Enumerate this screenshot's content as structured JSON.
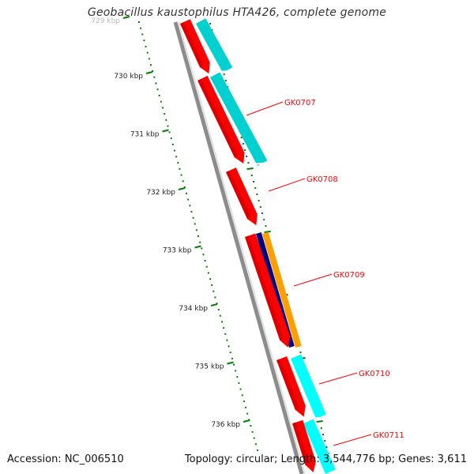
{
  "title": "Geobacillus kaustophilus HTA426, complete genome",
  "footer": {
    "accession": "Accession: NC_006510",
    "stats": "Topology: circular; Length: 3,544,776 bp; Genes: 3,611"
  },
  "ruler": {
    "ticks": [
      {
        "label": "729 kbp",
        "faded": true
      },
      {
        "label": "730 kbp"
      },
      {
        "label": "731 kbp"
      },
      {
        "label": "732 kbp"
      },
      {
        "label": "733 kbp"
      },
      {
        "label": "734 kbp"
      },
      {
        "label": "735 kbp"
      },
      {
        "label": "736 kbp"
      }
    ]
  },
  "genes": [
    {
      "label": "GK0707"
    },
    {
      "label": "GK0708"
    },
    {
      "label": "GK0709"
    },
    {
      "label": "GK0710"
    },
    {
      "label": "GK0711"
    }
  ],
  "colors": {
    "backbone": "#8c8c8c",
    "cds": "#ff0000",
    "cds_dark": "#b80000",
    "feature_cyan": "#00d0d0",
    "feature_cyan_bright": "#00ffff",
    "feature_navy": "#000080",
    "feature_orange": "#ff9f00",
    "ruler": "#008000",
    "label": "#ff0000"
  }
}
